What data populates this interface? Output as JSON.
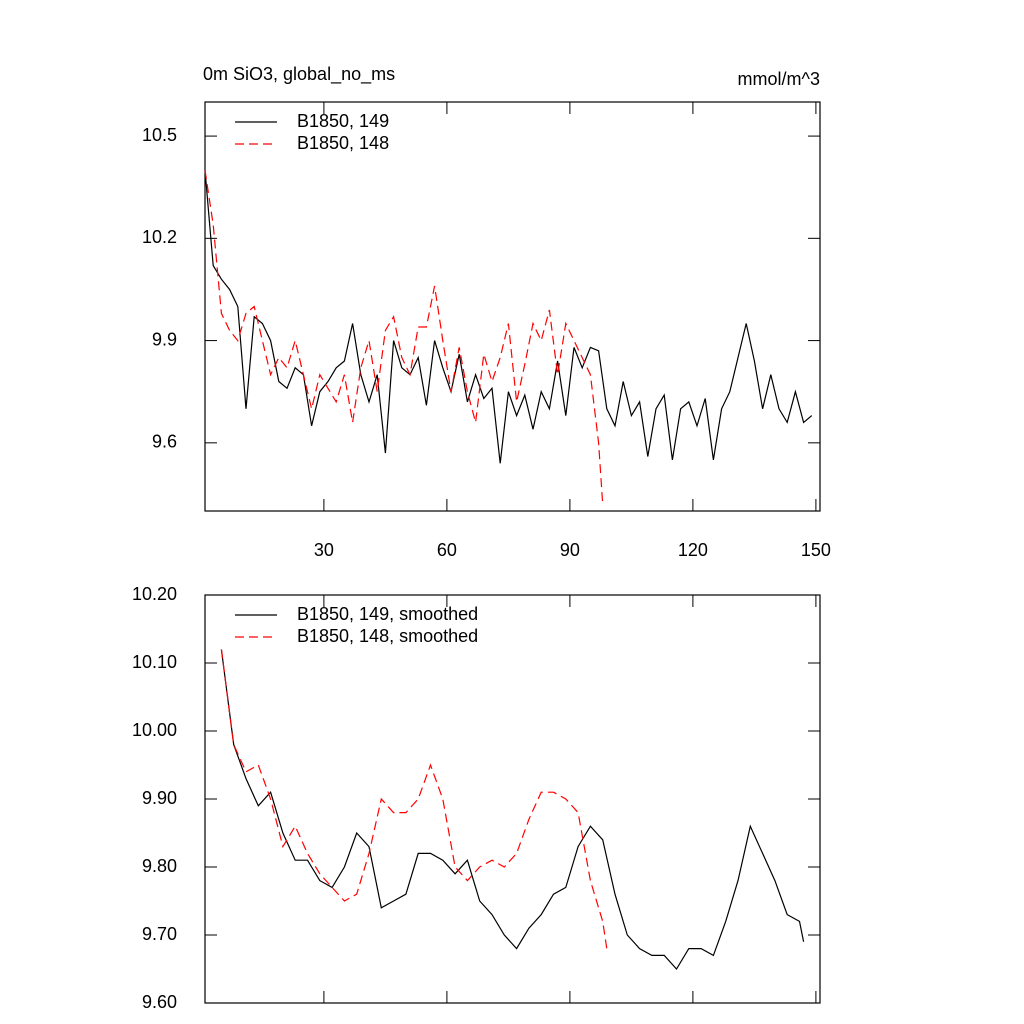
{
  "chart_data": [
    {
      "type": "line",
      "title": "0m SiO3, global_no_ms",
      "units": "mmol/m^3",
      "xlim": [
        1,
        151
      ],
      "xticks": [
        30,
        60,
        90,
        120,
        150
      ],
      "xtick_labels": true,
      "ylim": [
        9.4,
        10.6
      ],
      "yticks": [
        9.6,
        9.9,
        10.2,
        10.5
      ],
      "series": [
        {
          "name": "B1850, 149",
          "color": "#000000",
          "dash": false,
          "x": [
            1,
            3,
            5,
            7,
            9,
            11,
            13,
            15,
            17,
            19,
            21,
            23,
            25,
            27,
            29,
            31,
            33,
            35,
            37,
            39,
            41,
            43,
            45,
            47,
            49,
            51,
            53,
            55,
            57,
            59,
            61,
            63,
            65,
            67,
            69,
            71,
            73,
            75,
            77,
            79,
            81,
            83,
            85,
            87,
            89,
            91,
            93,
            95,
            97,
            99,
            101,
            103,
            105,
            107,
            109,
            111,
            113,
            115,
            117,
            119,
            121,
            123,
            125,
            127,
            129,
            131,
            133,
            135,
            137,
            139,
            141,
            143,
            145,
            147,
            149
          ],
          "values": [
            10.4,
            10.12,
            10.08,
            10.05,
            10.0,
            9.7,
            9.97,
            9.95,
            9.9,
            9.78,
            9.76,
            9.82,
            9.8,
            9.65,
            9.75,
            9.78,
            9.82,
            9.84,
            9.95,
            9.8,
            9.72,
            9.8,
            9.57,
            9.9,
            9.82,
            9.8,
            9.85,
            9.71,
            9.9,
            9.82,
            9.75,
            9.86,
            9.72,
            9.8,
            9.73,
            9.76,
            9.54,
            9.75,
            9.68,
            9.74,
            9.64,
            9.75,
            9.7,
            9.84,
            9.68,
            9.88,
            9.82,
            9.88,
            9.87,
            9.7,
            9.65,
            9.78,
            9.68,
            9.72,
            9.56,
            9.7,
            9.74,
            9.55,
            9.7,
            9.72,
            9.65,
            9.73,
            9.55,
            9.7,
            9.75,
            9.85,
            9.95,
            9.84,
            9.7,
            9.8,
            9.7,
            9.66,
            9.75,
            9.66,
            9.68
          ]
        },
        {
          "name": "B1850, 148",
          "color": "#ff0000",
          "dash": true,
          "x": [
            1,
            3,
            5,
            7,
            9,
            11,
            13,
            15,
            17,
            19,
            21,
            23,
            25,
            27,
            29,
            31,
            33,
            35,
            37,
            39,
            41,
            43,
            45,
            47,
            49,
            51,
            53,
            55,
            57,
            59,
            61,
            63,
            65,
            67,
            69,
            71,
            73,
            75,
            77,
            79,
            81,
            83,
            85,
            87,
            89,
            91,
            93,
            95,
            97,
            98
          ],
          "values": [
            10.4,
            10.24,
            9.98,
            9.93,
            9.9,
            9.98,
            10.0,
            9.9,
            9.8,
            9.85,
            9.82,
            9.9,
            9.8,
            9.7,
            9.8,
            9.76,
            9.72,
            9.8,
            9.66,
            9.82,
            9.9,
            9.75,
            9.93,
            9.97,
            9.85,
            9.8,
            9.94,
            9.94,
            10.06,
            9.9,
            9.75,
            9.88,
            9.75,
            9.66,
            9.86,
            9.78,
            9.85,
            9.95,
            9.72,
            9.83,
            9.95,
            9.9,
            9.99,
            9.8,
            9.95,
            9.9,
            9.85,
            9.8,
            9.6,
            9.42
          ]
        }
      ]
    },
    {
      "type": "line",
      "xlim": [
        1,
        151
      ],
      "xticks": [
        30,
        60,
        90,
        120,
        150
      ],
      "xtick_labels": false,
      "ylim": [
        9.6,
        10.2
      ],
      "yticks": [
        {
          "value": 9.6,
          "label": "9.60"
        },
        {
          "value": 9.7,
          "label": "9.70"
        },
        {
          "value": 9.8,
          "label": "9.80"
        },
        {
          "value": 9.9,
          "label": "9.90"
        },
        {
          "value": 10.0,
          "label": "10.00"
        },
        {
          "value": 10.1,
          "label": "10.10"
        },
        {
          "value": 10.2,
          "label": "10.20"
        }
      ],
      "series": [
        {
          "name": "B1850, 149, smoothed",
          "color": "#000000",
          "dash": false,
          "x": [
            5,
            8,
            11,
            14,
            17,
            20,
            23,
            26,
            29,
            32,
            35,
            38,
            41,
            44,
            47,
            50,
            53,
            56,
            59,
            62,
            65,
            68,
            71,
            74,
            77,
            80,
            83,
            86,
            89,
            92,
            95,
            98,
            101,
            104,
            107,
            110,
            113,
            116,
            119,
            122,
            125,
            128,
            131,
            134,
            137,
            140,
            143,
            146,
            147
          ],
          "values": [
            10.12,
            9.98,
            9.93,
            9.89,
            9.91,
            9.85,
            9.81,
            9.81,
            9.78,
            9.77,
            9.8,
            9.85,
            9.83,
            9.74,
            9.75,
            9.76,
            9.82,
            9.82,
            9.81,
            9.79,
            9.81,
            9.75,
            9.73,
            9.7,
            9.68,
            9.71,
            9.73,
            9.76,
            9.77,
            9.83,
            9.86,
            9.84,
            9.76,
            9.7,
            9.68,
            9.67,
            9.67,
            9.65,
            9.68,
            9.68,
            9.67,
            9.72,
            9.78,
            9.86,
            9.82,
            9.78,
            9.73,
            9.72,
            9.69
          ]
        },
        {
          "name": "B1850, 148, smoothed",
          "color": "#ff0000",
          "dash": true,
          "x": [
            5,
            8,
            11,
            14,
            17,
            20,
            23,
            26,
            29,
            32,
            35,
            38,
            41,
            44,
            47,
            50,
            53,
            56,
            59,
            62,
            65,
            68,
            71,
            74,
            77,
            80,
            83,
            86,
            89,
            92,
            95,
            98,
            99
          ],
          "values": [
            10.12,
            9.98,
            9.94,
            9.95,
            9.9,
            9.83,
            9.86,
            9.82,
            9.79,
            9.77,
            9.75,
            9.76,
            9.82,
            9.9,
            9.88,
            9.88,
            9.9,
            9.95,
            9.9,
            9.8,
            9.78,
            9.8,
            9.81,
            9.8,
            9.82,
            9.87,
            9.91,
            9.91,
            9.9,
            9.88,
            9.78,
            9.72,
            9.68
          ]
        }
      ]
    }
  ]
}
